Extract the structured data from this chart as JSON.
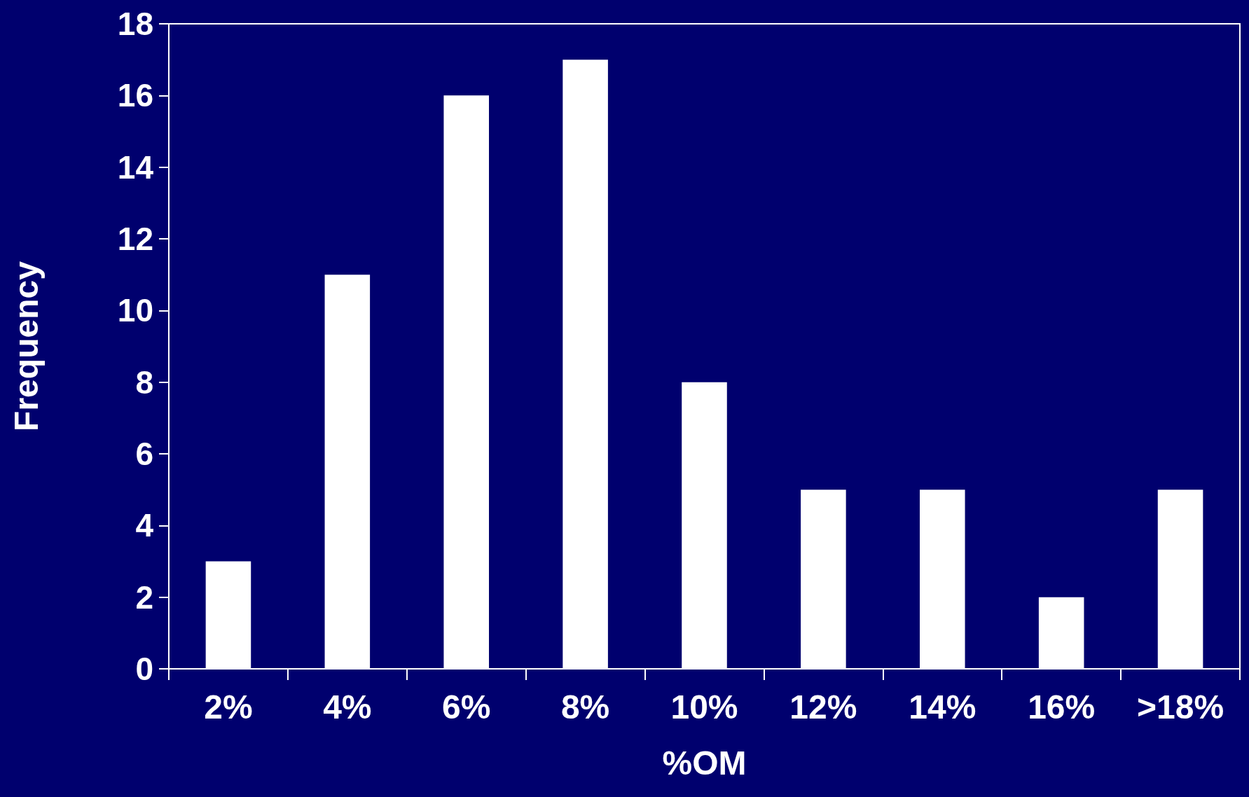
{
  "chart_data": {
    "type": "bar",
    "xlabel": "%OM",
    "ylabel": "Frequency",
    "categories": [
      "2%",
      "4%",
      "6%",
      "8%",
      "10%",
      "12%",
      "14%",
      "16%",
      ">18%"
    ],
    "values": [
      3,
      11,
      16,
      17,
      8,
      5,
      5,
      2,
      5
    ],
    "color": "#ffffff",
    "ylim": [
      0,
      18
    ],
    "yticks": [
      0,
      2,
      4,
      6,
      8,
      10,
      12,
      14,
      16,
      18
    ],
    "grid": false
  }
}
